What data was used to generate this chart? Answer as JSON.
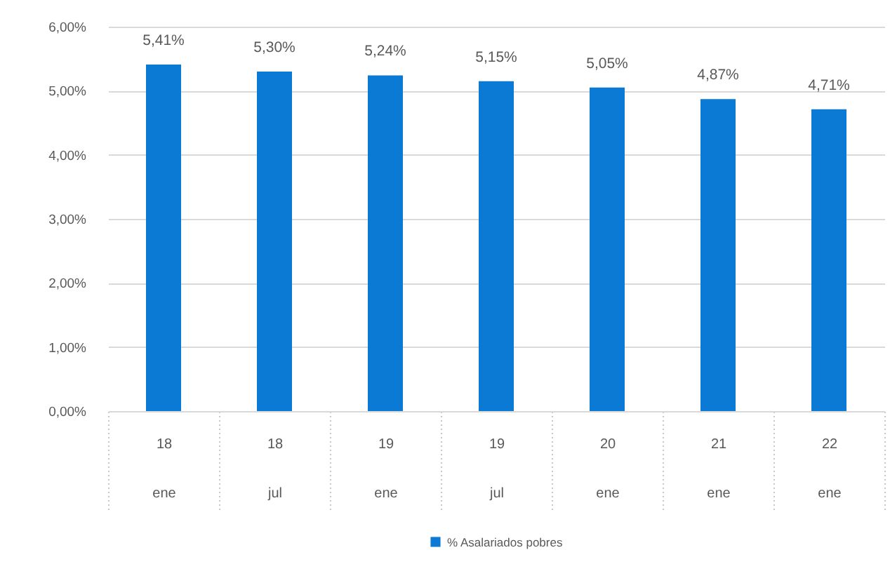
{
  "chart_data": {
    "type": "bar",
    "categories": [
      "18\nene",
      "18\njul",
      "19\nene",
      "19\njul",
      "20\nene",
      "21\nene",
      "22\nene"
    ],
    "series": [
      {
        "name": "% Asalariados pobres",
        "color": "#0a7ad4",
        "values": [
          5.41,
          5.3,
          5.24,
          5.15,
          5.05,
          4.87,
          4.71
        ],
        "value_labels": [
          "5,41%",
          "5,30%",
          "5,24%",
          "5,15%",
          "5,05%",
          "4,87%",
          "4,71%"
        ]
      }
    ],
    "ylim": [
      0,
      6
    ],
    "yticks": [
      {
        "value": 0,
        "label": "0,00%"
      },
      {
        "value": 1,
        "label": "1,00%"
      },
      {
        "value": 2,
        "label": "2,00%"
      },
      {
        "value": 3,
        "label": "3,00%"
      },
      {
        "value": 4,
        "label": "4,00%"
      },
      {
        "value": 5,
        "label": "5,00%"
      },
      {
        "value": 6,
        "label": "6,00%"
      }
    ],
    "grid": "y",
    "legend": "bottom"
  }
}
